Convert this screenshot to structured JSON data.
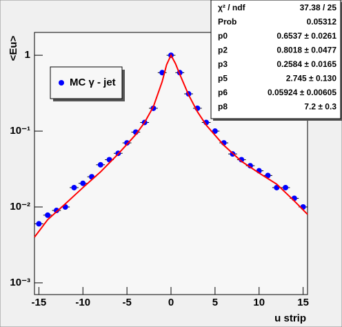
{
  "chart_data": {
    "type": "scatter",
    "ylabel": "<Eu>",
    "xlabel": "u strip",
    "log_y": true,
    "xlim": [
      -15.5,
      15.5
    ],
    "xticks": [
      -15,
      -10,
      -5,
      0,
      5,
      10,
      15
    ],
    "ylim": [
      0.0007,
      2
    ],
    "yticks": [
      {
        "value": 0.001,
        "label": "10⁻³"
      },
      {
        "value": 0.01,
        "label": "10⁻²"
      },
      {
        "value": 0.1,
        "label": "10⁻¹"
      },
      1
    ],
    "legend_position": "upper-left",
    "series": [
      {
        "name": "MC γ - jet",
        "color": "#0000ff",
        "x": [
          -15,
          -14,
          -13,
          -12,
          -11,
          -10,
          -9,
          -8,
          -7,
          -6,
          -5,
          -4,
          -3,
          -2,
          -1,
          0,
          1,
          2,
          3,
          4,
          5,
          6,
          7,
          8,
          9,
          10,
          11,
          12,
          13,
          14,
          15
        ],
        "values": [
          0.006,
          0.0078,
          0.009,
          0.01,
          0.018,
          0.0205,
          0.025,
          0.036,
          0.042,
          0.051,
          0.07,
          0.097,
          0.13,
          0.2,
          0.59,
          1,
          0.59,
          0.31,
          0.2,
          0.13,
          0.1,
          0.07,
          0.05,
          0.042,
          0.035,
          0.03,
          0.026,
          0.018,
          0.018,
          0.013,
          0.01
        ]
      },
      {
        "name": null,
        "color": "#ff0000",
        "x": [
          -15.5,
          -14,
          -12,
          -10,
          -8,
          -6,
          -4,
          -3,
          -2,
          -1,
          -0.5,
          0,
          0.5,
          1,
          2,
          3,
          4,
          6,
          8,
          10,
          12,
          14,
          15.5
        ],
        "values": [
          0.004,
          0.0068,
          0.011,
          0.018,
          0.029,
          0.05,
          0.09,
          0.13,
          0.21,
          0.45,
          0.75,
          1,
          0.78,
          0.56,
          0.3,
          0.18,
          0.12,
          0.065,
          0.04,
          0.028,
          0.02,
          0.012,
          0.008
        ]
      }
    ],
    "stats": [
      [
        "χ² / ndf",
        "37.38 / 25"
      ],
      [
        "Prob",
        "0.05312"
      ],
      [
        "p0",
        "0.6537 ± 0.0261"
      ],
      [
        "p2",
        "0.8018 ± 0.0477"
      ],
      [
        "p3",
        "0.2584 ± 0.0165"
      ],
      [
        "p5",
        "2.745 ± 0.130"
      ],
      [
        "p6",
        "0.05924 ± 0.00605"
      ],
      [
        "p8",
        "7.2 ± 0.3"
      ]
    ]
  }
}
